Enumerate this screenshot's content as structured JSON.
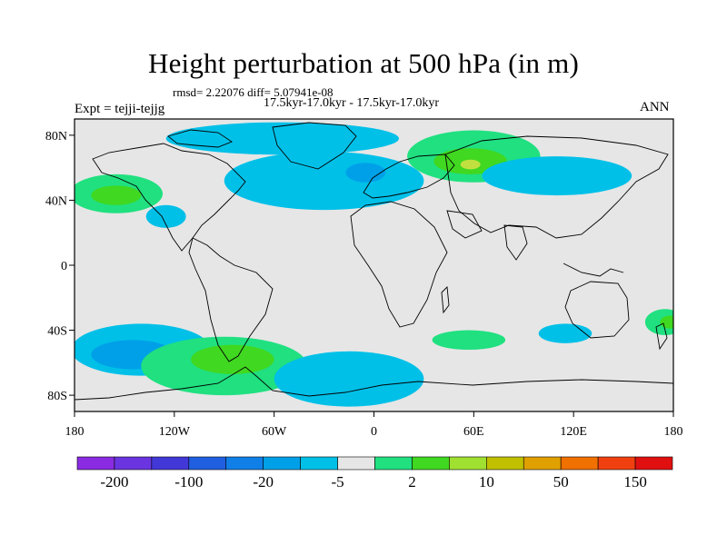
{
  "header": {
    "title": "Height perturbation at 500 hPa (in m)",
    "stats": "rmsd= 2.22076 diff= 5.07941e-08",
    "subtitle": "17.5kyr-17.0kyr - 17.5kyr-17.0kyr",
    "experiment": "Expt = tejji-tejjg",
    "season": "ANN"
  },
  "map": {
    "lat_ticks": [
      {
        "lat": 80,
        "label": "80N"
      },
      {
        "lat": 40,
        "label": "40N"
      },
      {
        "lat": 0,
        "label": "0"
      },
      {
        "lat": -40,
        "label": "40S"
      },
      {
        "lat": -80,
        "label": "80S"
      }
    ],
    "lon_ticks": [
      {
        "lon": -180,
        "label": "180"
      },
      {
        "lon": -120,
        "label": "120W"
      },
      {
        "lon": -60,
        "label": "60W"
      },
      {
        "lon": 0,
        "label": "0"
      },
      {
        "lon": 60,
        "label": "60E"
      },
      {
        "lon": 120,
        "label": "120E"
      },
      {
        "lon": 180,
        "label": "180"
      }
    ],
    "colors": {
      "background": "#e6e6e6",
      "light_blue": "#00c0e8",
      "mid_blue": "#00a0e8",
      "green_light": "#20e080",
      "green": "#40d820",
      "yellow_green": "#c0e040",
      "coast": "#000000"
    },
    "anomalies": [
      {
        "name": "north-atlantic-low",
        "level": "light_blue",
        "lon": -30,
        "lat": 52,
        "rx": 60,
        "ry": 18
      },
      {
        "name": "greenland-low",
        "level": "light_blue",
        "lon": -55,
        "lat": 78,
        "rx": 70,
        "ry": 10
      },
      {
        "name": "europe-low-core",
        "level": "mid_blue",
        "lon": -5,
        "lat": 57,
        "rx": 12,
        "ry": 6
      },
      {
        "name": "russia-high",
        "level": "green_light",
        "lon": 60,
        "lat": 67,
        "rx": 40,
        "ry": 16
      },
      {
        "name": "russia-high-core",
        "level": "green",
        "lon": 58,
        "lat": 64,
        "rx": 22,
        "ry": 8
      },
      {
        "name": "russia-high-peak",
        "level": "yellow_green",
        "lon": 58,
        "lat": 62,
        "rx": 6,
        "ry": 3
      },
      {
        "name": "asia-low",
        "level": "light_blue",
        "lon": 110,
        "lat": 55,
        "rx": 45,
        "ry": 12
      },
      {
        "name": "pacific-high",
        "level": "green_light",
        "lon": -155,
        "lat": 44,
        "rx": 28,
        "ry": 12
      },
      {
        "name": "pacific-high-core",
        "level": "green",
        "lon": -155,
        "lat": 43,
        "rx": 15,
        "ry": 6
      },
      {
        "name": "east-pacific-low",
        "level": "light_blue",
        "lon": -125,
        "lat": 30,
        "rx": 12,
        "ry": 7
      },
      {
        "name": "south-pacific-low",
        "level": "light_blue",
        "lon": -140,
        "lat": -52,
        "rx": 42,
        "ry": 16
      },
      {
        "name": "south-pacific-low-core",
        "level": "mid_blue",
        "lon": -145,
        "lat": -55,
        "rx": 25,
        "ry": 9
      },
      {
        "name": "south-america-high",
        "level": "green_light",
        "lon": -90,
        "lat": -62,
        "rx": 50,
        "ry": 18
      },
      {
        "name": "south-america-high-core",
        "level": "green",
        "lon": -85,
        "lat": -58,
        "rx": 25,
        "ry": 9
      },
      {
        "name": "south-atlantic-low",
        "level": "light_blue",
        "lon": -15,
        "lat": -70,
        "rx": 45,
        "ry": 17
      },
      {
        "name": "indian-ocean-high",
        "level": "green_light",
        "lon": 57,
        "lat": -46,
        "rx": 22,
        "ry": 6
      },
      {
        "name": "southern-indian-low",
        "level": "light_blue",
        "lon": 115,
        "lat": -42,
        "rx": 16,
        "ry": 6
      },
      {
        "name": "tasman-high",
        "level": "green_light",
        "lon": 175,
        "lat": -35,
        "rx": 12,
        "ry": 8
      },
      {
        "name": "tasman-high-core",
        "level": "green",
        "lon": 178,
        "lat": -35,
        "rx": 6,
        "ry": 4
      }
    ]
  },
  "colorbar": {
    "colors": [
      "#8a2be2",
      "#6a34e0",
      "#4238d8",
      "#2060e0",
      "#1080e8",
      "#00a0e8",
      "#00c0e8",
      "#e6e6e6",
      "#20e080",
      "#40d820",
      "#a0e030",
      "#c0c000",
      "#e0a000",
      "#f07000",
      "#f04010",
      "#e01010"
    ],
    "labels": [
      "-200",
      "-100",
      "-20",
      "-5",
      "2",
      "10",
      "50",
      "150"
    ]
  }
}
